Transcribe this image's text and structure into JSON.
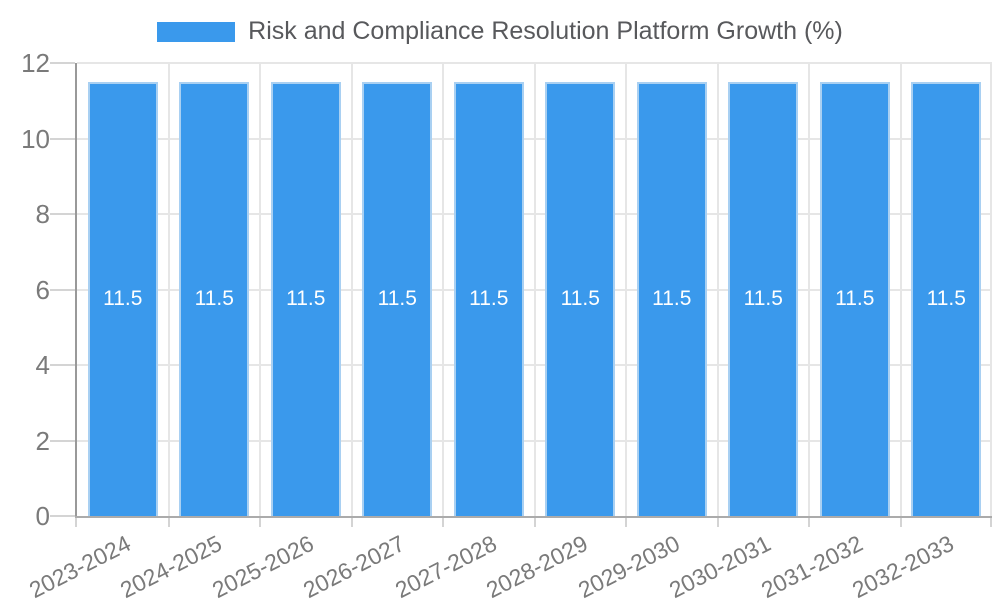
{
  "chart_data": {
    "type": "bar",
    "title": "Risk and Compliance Resolution Platform Growth (%)",
    "categories": [
      "2023-2024",
      "2024-2025",
      "2025-2026",
      "2026-2027",
      "2027-2028",
      "2028-2029",
      "2029-2030",
      "2030-2031",
      "2031-2032",
      "2032-2033"
    ],
    "values": [
      11.5,
      11.5,
      11.5,
      11.5,
      11.5,
      11.5,
      11.5,
      11.5,
      11.5,
      11.5
    ],
    "bar_labels": [
      "11.5",
      "11.5",
      "11.5",
      "11.5",
      "11.5",
      "11.5",
      "11.5",
      "11.5",
      "11.5",
      "11.5"
    ],
    "xlabel": "",
    "ylabel": "",
    "ylim": [
      0,
      12
    ],
    "yticks": [
      0,
      2,
      4,
      6,
      8,
      10,
      12
    ],
    "ytick_labels": [
      "0",
      "2",
      "4",
      "6",
      "8",
      "10",
      "12"
    ],
    "grid": true,
    "legend_position": "top",
    "colors": {
      "bar_fill": "#3a99ec",
      "bar_border": "#a9d0f2",
      "bar_label_text": "#ffffff",
      "grid": "#e6e6e6",
      "y_axis_line": "#999999",
      "x_axis_line": "#ababab",
      "tick_mark": "#d4d4d4",
      "tick_text": "#7a7a7a",
      "title_text": "#58595c",
      "background": "#ffffff"
    }
  }
}
